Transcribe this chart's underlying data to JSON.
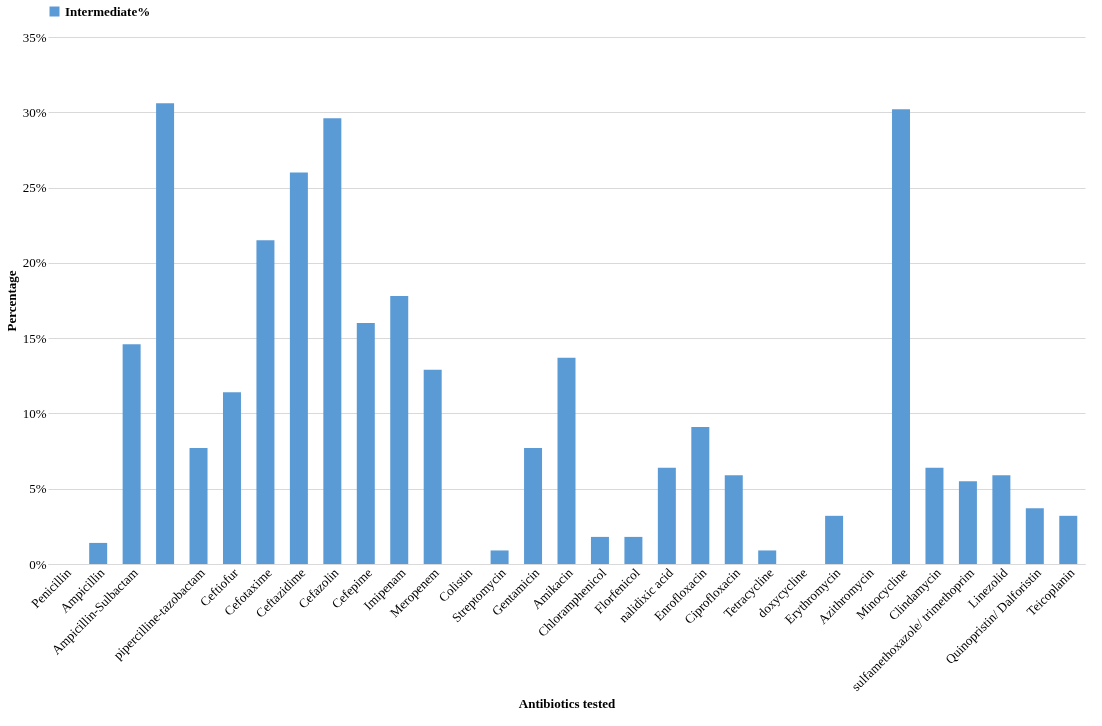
{
  "chart_data": {
    "type": "bar",
    "xlabel": "Antibiotics  tested",
    "ylabel": "Percentage",
    "categories": [
      "Penicillin",
      "Ampicillin",
      "Ampicillin-Sulbactam",
      null,
      "pipercilline-tazobactam",
      "Ceftiofur",
      "Cefotaxime",
      "Ceftazidime",
      "Cefazolin",
      "Cefepime",
      "Imipenam",
      "Meropenem",
      "Colistin",
      "Streptomycin",
      "Gentamicin",
      "Amikacin",
      "Chloramphenicol",
      "Florfenicol",
      "nalidixic acid",
      "Enrofloxacin",
      "Ciprofloxacin",
      "Tetracycline",
      "doxycycline",
      "Erythromycin",
      "Azithromycin",
      "Minocycline",
      "Clindamycin",
      "sulfamethoxazole/ trimethoprim",
      "Linezolid",
      "Quinopristin/ Dalforistin",
      "Teicoplanin"
    ],
    "series": [
      {
        "name": "Intermediate%",
        "color": "#5b9bd5",
        "values": [
          0,
          1.4,
          14.6,
          30.6,
          7.7,
          11.4,
          21.5,
          26.0,
          29.6,
          16.0,
          17.8,
          12.9,
          0,
          0.9,
          7.7,
          13.7,
          1.8,
          1.8,
          6.4,
          9.1,
          5.9,
          0.9,
          0,
          3.2,
          0,
          30.2,
          6.4,
          5.5,
          5.9,
          3.7,
          3.2
        ]
      }
    ],
    "ylim": [
      0,
      35
    ],
    "yticks": [
      {
        "value": 0,
        "label": "0%"
      },
      {
        "value": 5,
        "label": "5%"
      },
      {
        "value": 10,
        "label": "10%"
      },
      {
        "value": 15,
        "label": "15%"
      },
      {
        "value": 20,
        "label": "20%"
      },
      {
        "value": 25,
        "label": "25%"
      },
      {
        "value": 30,
        "label": "30%"
      },
      {
        "value": 35,
        "label": "35%"
      }
    ],
    "grid": "y",
    "legend": "top"
  }
}
